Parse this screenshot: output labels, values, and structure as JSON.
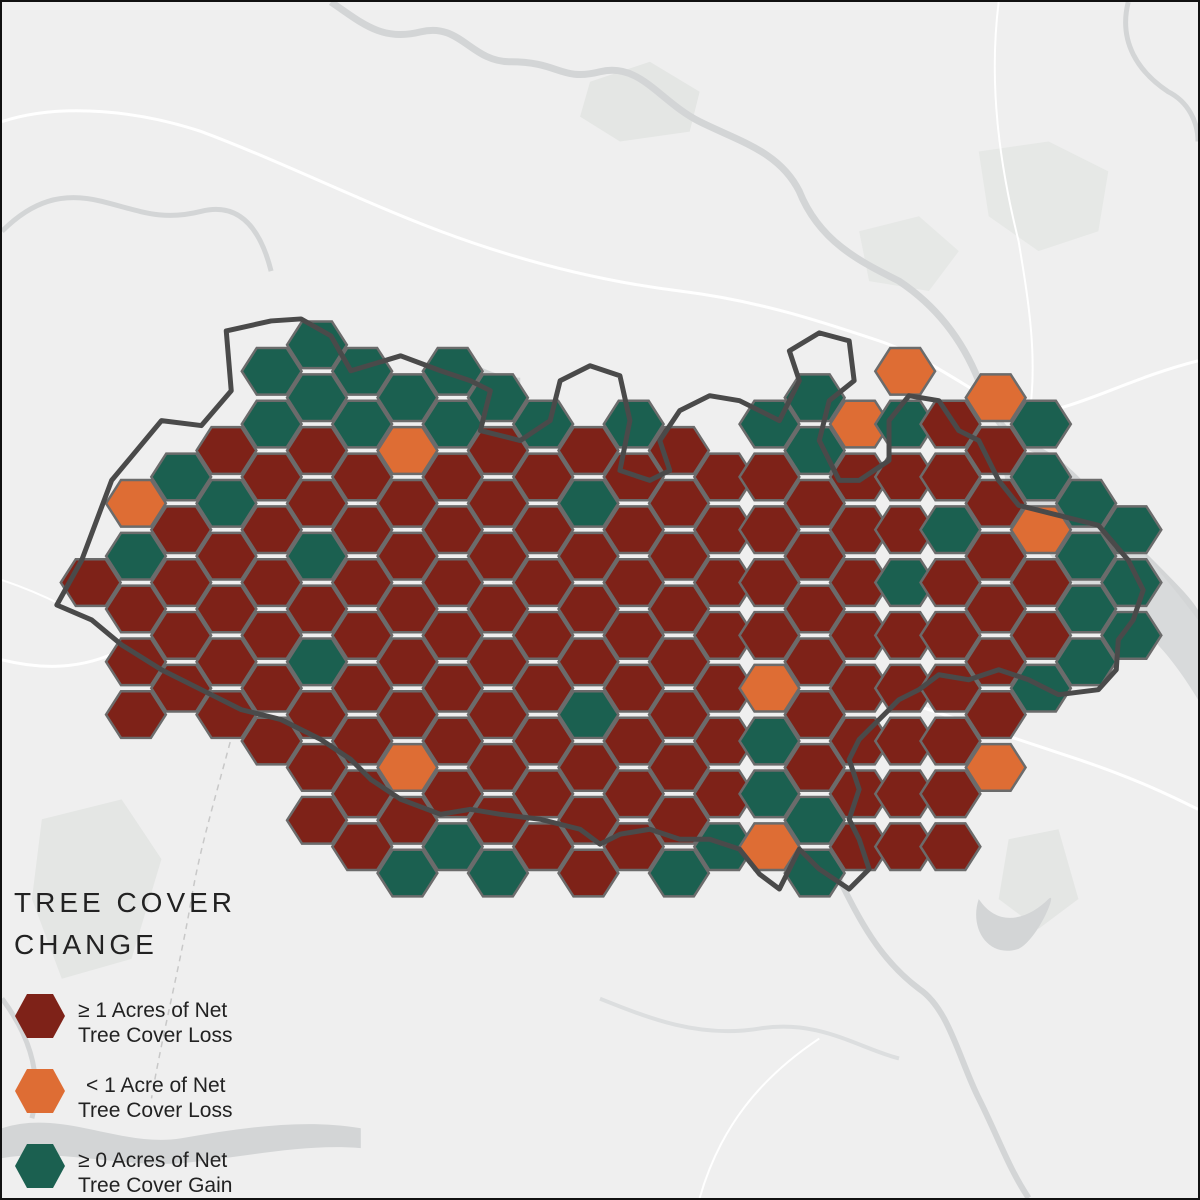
{
  "legend": {
    "title_line1": "TREE COVER",
    "title_line2": "CHANGE",
    "items": [
      {
        "key": "loss",
        "line1": "≥ 1 Acres of Net",
        "line2": "Tree Cover Loss",
        "color": "#7e2218"
      },
      {
        "key": "small_loss",
        "line1": "< 1 Acre of Net",
        "line2": "Tree Cover Loss",
        "color": "#de6d34"
      },
      {
        "key": "gain",
        "line1": "≥ 0 Acres of Net",
        "line2": "Tree Cover Gain",
        "color": "#1b6050"
      }
    ]
  },
  "colors": {
    "background": "#efefef",
    "river": "#d3d5d6",
    "road": "#ffffff",
    "boundary": "#4a4a4a",
    "hex_stroke": "#6b6b6b"
  }
}
